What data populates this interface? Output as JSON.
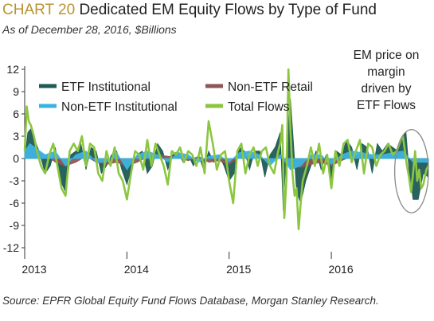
{
  "header": {
    "chart_no": "CHART 20",
    "title": "Dedicated EM Equity Flows by Type of Fund",
    "subtitle": "As of December 28, 2016, $Billions"
  },
  "footer": {
    "source": "Source: EPFR Global Equity Fund Flows Database, Morgan Stanley Research."
  },
  "colors": {
    "etf_institutional": "#1f5b55",
    "non_etf_retail": "#8f5656",
    "non_etf_institutional": "#3bb3e0",
    "total_flows": "#8cc641",
    "axis": "#333333",
    "zero_line": "#555555",
    "ellipse": "#888888"
  },
  "chart_data": {
    "type": "area",
    "ylim": [
      -12,
      12
    ],
    "yticks": [
      12,
      9,
      6,
      3,
      0,
      -3,
      -6,
      -9,
      -12
    ],
    "ytick_labels": [
      "12",
      "9",
      "6",
      "3",
      "0",
      "-3",
      "-6",
      "-9",
      "-12"
    ],
    "xlim": [
      2013.0,
      2016.95
    ],
    "xticks": [
      2013,
      2014,
      2015,
      2016
    ],
    "xtick_labels": [
      "2013",
      "2014",
      "2015",
      "2016"
    ],
    "legend": [
      {
        "key": "etf_institutional",
        "label": "ETF Institutional"
      },
      {
        "key": "non_etf_retail",
        "label": "Non-ETF Retail"
      },
      {
        "key": "non_etf_institutional",
        "label": "Non-ETF Institutional"
      },
      {
        "key": "total_flows",
        "label": "Total Flows"
      }
    ],
    "annotation": {
      "lines": [
        "EM price on",
        "margin",
        "driven by",
        "ETF Flows"
      ],
      "x_range": [
        2016.62,
        2016.95
      ],
      "y_range": [
        -7.3,
        3.9
      ]
    },
    "series": [
      {
        "name": "ETF Institutional",
        "key": "etf_institutional",
        "x": [
          2013.0,
          2013.03,
          2013.06,
          2013.1,
          2013.14,
          2013.2,
          2013.25,
          2013.3,
          2013.35,
          2013.4,
          2013.45,
          2013.5,
          2013.55,
          2013.6,
          2013.65,
          2013.7,
          2013.75,
          2013.8,
          2013.85,
          2013.9,
          2013.95,
          2014.0,
          2014.05,
          2014.1,
          2014.15,
          2014.2,
          2014.25,
          2014.3,
          2014.35,
          2014.4,
          2014.45,
          2014.5,
          2014.55,
          2014.6,
          2014.65,
          2014.7,
          2014.75,
          2014.8,
          2014.85,
          2014.9,
          2014.95,
          2015.0,
          2015.05,
          2015.1,
          2015.15,
          2015.2,
          2015.25,
          2015.3,
          2015.35,
          2015.4,
          2015.45,
          2015.5,
          2015.53,
          2015.56,
          2015.6,
          2015.63,
          2015.66,
          2015.7,
          2015.75,
          2015.8,
          2015.85,
          2015.9,
          2015.95,
          2016.0,
          2016.05,
          2016.1,
          2016.15,
          2016.2,
          2016.25,
          2016.3,
          2016.35,
          2016.4,
          2016.45,
          2016.5,
          2016.55,
          2016.6,
          2016.65,
          2016.7,
          2016.73,
          2016.76,
          2016.8,
          2016.85,
          2016.9,
          2016.95
        ],
        "y": [
          0,
          3.5,
          4.0,
          2.5,
          1.0,
          -2.0,
          -1.0,
          1.5,
          -3.0,
          -4.5,
          0.5,
          1.0,
          2.0,
          -1.5,
          1.5,
          1.0,
          -2.0,
          -1.0,
          0.5,
          1.0,
          -1.5,
          -3.5,
          -1.0,
          0.5,
          1.0,
          -2.0,
          -1.0,
          2.0,
          1.0,
          -1.5,
          0.5,
          1.0,
          -0.5,
          0.5,
          -1.0,
          0.5,
          -1.5,
          1.0,
          -0.5,
          0.5,
          -1.0,
          -3.0,
          -2.0,
          1.5,
          1.0,
          -1.5,
          1.0,
          1.0,
          -2.5,
          0.5,
          1.5,
          3.5,
          -7.0,
          1.0,
          8.0,
          2.0,
          -4.5,
          -6.0,
          -3.0,
          -1.0,
          1.0,
          -1.5,
          0.5,
          -3.5,
          1.0,
          0.5,
          2.5,
          1.5,
          -1.5,
          2.0,
          1.5,
          -2.0,
          2.0,
          1.0,
          2.0,
          1.5,
          1.0,
          3.0,
          3.5,
          -1.5,
          -5.5,
          -5.5,
          -2.0,
          -2.5
        ]
      },
      {
        "name": "Non-ETF Retail",
        "key": "non_etf_retail",
        "x": [
          2013.0,
          2013.05,
          2013.1,
          2013.2,
          2013.3,
          2013.4,
          2013.5,
          2013.6,
          2013.7,
          2013.8,
          2013.9,
          2014.0,
          2014.1,
          2014.2,
          2014.3,
          2014.4,
          2014.5,
          2014.6,
          2014.7,
          2014.8,
          2014.9,
          2015.0,
          2015.1,
          2015.2,
          2015.3,
          2015.4,
          2015.5,
          2015.6,
          2015.7,
          2015.8,
          2015.9,
          2016.0,
          2016.1,
          2016.2,
          2016.3,
          2016.4,
          2016.5,
          2016.6,
          2016.7,
          2016.8,
          2016.9,
          2016.95
        ],
        "y": [
          0.5,
          1.5,
          1.0,
          0.5,
          -0.5,
          -1.0,
          -0.5,
          0.3,
          -0.5,
          -0.8,
          -0.5,
          -1.0,
          -0.5,
          0.2,
          0.5,
          0.3,
          0.2,
          -0.3,
          0.3,
          -0.5,
          -0.3,
          -0.8,
          0.2,
          0.3,
          0.2,
          -0.5,
          0.5,
          -1.0,
          -1.2,
          -0.8,
          -0.5,
          -1.0,
          -0.3,
          0.3,
          0.5,
          0.3,
          0.3,
          0.5,
          0.5,
          -0.3,
          -0.5,
          -0.3
        ]
      },
      {
        "name": "Non-ETF Institutional",
        "key": "non_etf_institutional",
        "x": [
          2013.0,
          2013.05,
          2013.1,
          2013.2,
          2013.3,
          2013.4,
          2013.5,
          2013.6,
          2013.7,
          2013.8,
          2013.9,
          2014.0,
          2014.1,
          2014.2,
          2014.3,
          2014.4,
          2014.5,
          2014.6,
          2014.7,
          2014.8,
          2014.9,
          2015.0,
          2015.1,
          2015.2,
          2015.3,
          2015.4,
          2015.5,
          2015.6,
          2015.7,
          2015.8,
          2015.9,
          2016.0,
          2016.1,
          2016.2,
          2016.3,
          2016.4,
          2016.5,
          2016.6,
          2016.7,
          2016.8,
          2016.9,
          2016.95
        ],
        "y": [
          1.0,
          2.0,
          1.5,
          0.5,
          1.0,
          -1.0,
          0.5,
          1.0,
          -0.5,
          -0.5,
          0.8,
          -1.5,
          0.5,
          1.0,
          0.5,
          -0.5,
          0.8,
          0.5,
          -0.5,
          0.3,
          0.5,
          -0.5,
          0.8,
          1.0,
          0.5,
          -1.0,
          0.5,
          -1.5,
          -1.0,
          0.5,
          0.5,
          -0.8,
          0.5,
          1.0,
          0.8,
          0.5,
          0.5,
          0.8,
          1.0,
          -0.5,
          -0.5,
          -0.5
        ]
      },
      {
        "name": "Total Flows",
        "key": "total_flows",
        "x": [
          2013.0,
          2013.02,
          2013.04,
          2013.06,
          2013.09,
          2013.12,
          2013.16,
          2013.2,
          2013.24,
          2013.28,
          2013.32,
          2013.36,
          2013.4,
          2013.44,
          2013.48,
          2013.52,
          2013.56,
          2013.6,
          2013.64,
          2013.68,
          2013.72,
          2013.76,
          2013.8,
          2013.84,
          2013.88,
          2013.92,
          2013.96,
          2014.0,
          2014.04,
          2014.08,
          2014.12,
          2014.16,
          2014.2,
          2014.24,
          2014.28,
          2014.32,
          2014.36,
          2014.4,
          2014.44,
          2014.48,
          2014.52,
          2014.56,
          2014.6,
          2014.64,
          2014.68,
          2014.72,
          2014.76,
          2014.8,
          2014.84,
          2014.88,
          2014.92,
          2014.96,
          2015.0,
          2015.04,
          2015.08,
          2015.12,
          2015.16,
          2015.2,
          2015.24,
          2015.28,
          2015.32,
          2015.36,
          2015.4,
          2015.44,
          2015.48,
          2015.5,
          2015.52,
          2015.54,
          2015.56,
          2015.58,
          2015.6,
          2015.62,
          2015.64,
          2015.66,
          2015.68,
          2015.7,
          2015.72,
          2015.76,
          2015.8,
          2015.84,
          2015.88,
          2015.92,
          2015.96,
          2016.0,
          2016.04,
          2016.08,
          2016.12,
          2016.16,
          2016.2,
          2016.24,
          2016.28,
          2016.32,
          2016.36,
          2016.4,
          2016.44,
          2016.48,
          2016.52,
          2016.56,
          2016.6,
          2016.64,
          2016.68,
          2016.7,
          2016.72,
          2016.74,
          2016.76,
          2016.78,
          2016.8,
          2016.82,
          2016.84,
          2016.86,
          2016.88,
          2016.9,
          2016.93,
          2016.95
        ],
        "y": [
          1.0,
          7.0,
          5.0,
          4.5,
          3.0,
          1.0,
          -1.0,
          -2.0,
          0.5,
          2.0,
          -1.0,
          -4.0,
          -5.0,
          1.0,
          2.0,
          1.0,
          3.0,
          -1.0,
          2.0,
          1.5,
          -2.0,
          -3.0,
          1.0,
          -1.0,
          1.5,
          -2.0,
          -3.0,
          -5.5,
          -2.0,
          1.0,
          0.5,
          -1.5,
          2.5,
          -1.0,
          2.0,
          0.5,
          -1.0,
          -3.5,
          1.0,
          0.5,
          1.5,
          -0.5,
          1.0,
          0.5,
          -1.0,
          1.5,
          -2.0,
          5.0,
          2.0,
          -1.5,
          0.5,
          1.0,
          -3.0,
          -6.0,
          1.0,
          2.0,
          -2.0,
          0.5,
          1.5,
          -1.0,
          1.0,
          1.5,
          -1.0,
          -2.0,
          1.0,
          2.0,
          4.5,
          -8.0,
          -3.0,
          12.0,
          4.0,
          -2.0,
          -5.0,
          -4.0,
          -9.5,
          -6.0,
          -3.0,
          -1.0,
          1.5,
          -1.0,
          2.0,
          -2.0,
          0.5,
          -4.0,
          1.0,
          -1.0,
          2.0,
          2.5,
          -0.5,
          1.0,
          2.5,
          -2.0,
          2.0,
          1.5,
          -1.0,
          0.5,
          1.0,
          2.0,
          0.5,
          1.0,
          2.5,
          3.0,
          1.0,
          -1.0,
          -2.5,
          -4.5,
          -2.0,
          1.0,
          -3.0,
          -1.5,
          -4.0,
          -3.5,
          -1.5,
          -1.0
        ]
      }
    ]
  }
}
